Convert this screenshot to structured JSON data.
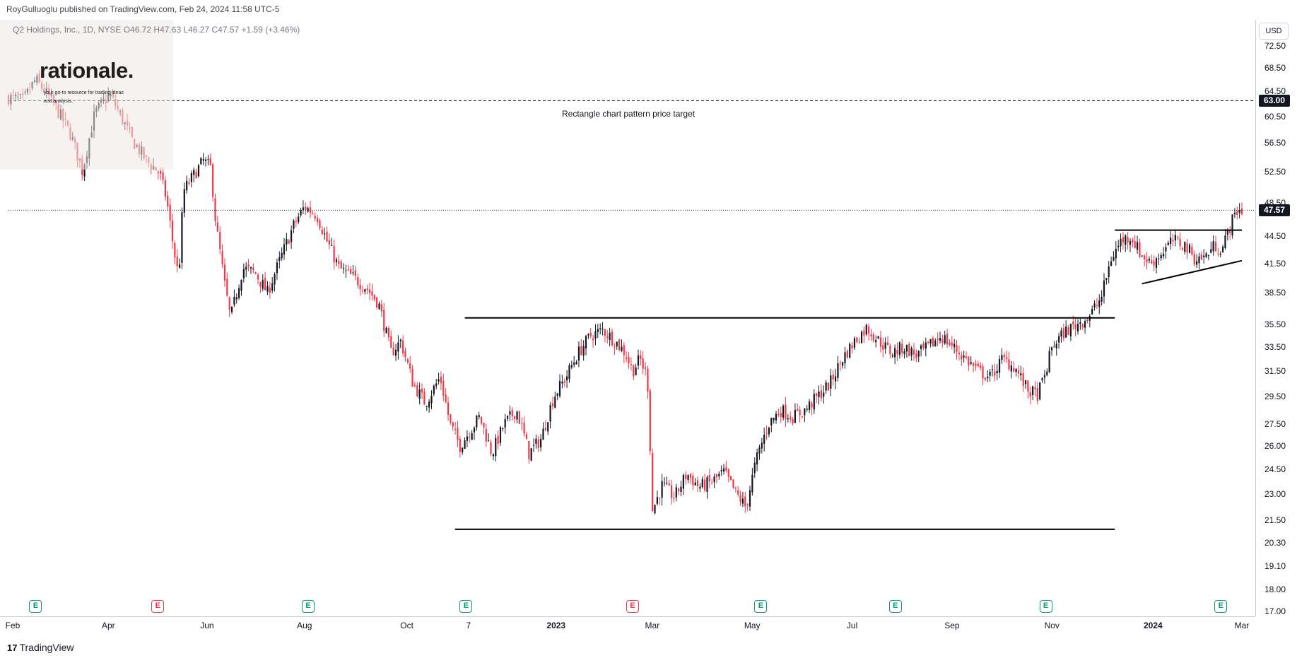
{
  "header": {
    "published": "RoyGulluoglu published on TradingView.com, Feb 24, 2024 11:58 UTC-5",
    "symbol_line": "Q2 Holdings, Inc., 1D, NYSE  O46.72  H47.63  L46.27  C47.57  +1.59 (+3.46%)"
  },
  "watermark": {
    "title": "rationale.",
    "subtitle": "your go-to resource for trading ideas and analysis."
  },
  "currency_button": "USD",
  "footer": {
    "logo_mark": "17",
    "logo_text": "TradingView"
  },
  "chart_data": {
    "type": "candlestick",
    "title": "",
    "ylabel": "",
    "xlabel": "",
    "ylim": [
      16.8,
      77.5
    ],
    "y_scale": "log",
    "y_ticks": [
      "72.50",
      "68.50",
      "64.50",
      "60.50",
      "56.50",
      "52.50",
      "48.50",
      "44.50",
      "41.50",
      "38.50",
      "35.50",
      "33.50",
      "31.50",
      "29.50",
      "27.50",
      "26.00",
      "24.50",
      "23.00",
      "21.50",
      "20.30",
      "19.10",
      "18.00",
      "17.00"
    ],
    "x_ticks": [
      {
        "label": "Feb",
        "pos": 0.0,
        "bold": false
      },
      {
        "label": "Apr",
        "pos": 0.081,
        "bold": false
      },
      {
        "label": "Jun",
        "pos": 0.161,
        "bold": false
      },
      {
        "label": "Aug",
        "pos": 0.24,
        "bold": false
      },
      {
        "label": "Oct",
        "pos": 0.323,
        "bold": false
      },
      {
        "label": "7",
        "pos": 0.373,
        "bold": false
      },
      {
        "label": "2023",
        "pos": 0.444,
        "bold": true
      },
      {
        "label": "Mar",
        "pos": 0.522,
        "bold": false
      },
      {
        "label": "May",
        "pos": 0.603,
        "bold": false
      },
      {
        "label": "Jul",
        "pos": 0.684,
        "bold": false
      },
      {
        "label": "Sep",
        "pos": 0.765,
        "bold": false
      },
      {
        "label": "Nov",
        "pos": 0.846,
        "bold": false
      },
      {
        "label": "2024",
        "pos": 0.928,
        "bold": true
      },
      {
        "label": "Mar",
        "pos": 1.0,
        "bold": false
      }
    ],
    "current_price": {
      "value": 47.57,
      "label": "47.57"
    },
    "target": {
      "value": 63.0,
      "label": "63.00",
      "annotation": "Rectangle chart pattern price target"
    },
    "trendlines": [
      {
        "name": "rectangle-top",
        "x1": 0.37,
        "y1": 36.1,
        "x2": 0.897,
        "y2": 36.1
      },
      {
        "name": "rectangle-bottom",
        "x1": 0.362,
        "y1": 21.0,
        "x2": 0.897,
        "y2": 21.0
      },
      {
        "name": "triangle-resistance",
        "x1": 0.897,
        "y1": 45.2,
        "x2": 1.0,
        "y2": 45.2
      },
      {
        "name": "triangle-support",
        "x1": 0.919,
        "y1": 39.4,
        "x2": 1.0,
        "y2": 41.8
      }
    ],
    "earnings_markers": [
      {
        "pos": 0.022,
        "result": "beat",
        "label": "E"
      },
      {
        "pos": 0.121,
        "result": "miss",
        "label": "E"
      },
      {
        "pos": 0.243,
        "result": "beat",
        "label": "E"
      },
      {
        "pos": 0.371,
        "result": "beat",
        "label": "E"
      },
      {
        "pos": 0.506,
        "result": "miss",
        "label": "E"
      },
      {
        "pos": 0.61,
        "result": "beat",
        "label": "E"
      },
      {
        "pos": 0.719,
        "result": "beat",
        "label": "E"
      },
      {
        "pos": 0.841,
        "result": "beat",
        "label": "E"
      },
      {
        "pos": 0.983,
        "result": "beat",
        "label": "E"
      }
    ],
    "colors": {
      "up": "#131722",
      "down": "#f23645",
      "line": "#000000",
      "grid": "none",
      "earn_beat": "#089981",
      "earn_miss": "#f23645"
    },
    "series": [
      {
        "name": "",
        "anchors": [
          [
            0.0,
            63.5
          ],
          [
            0.012,
            63.0
          ],
          [
            0.022,
            66.5
          ],
          [
            0.035,
            63.0
          ],
          [
            0.05,
            58.0
          ],
          [
            0.06,
            52.5
          ],
          [
            0.07,
            61.0
          ],
          [
            0.082,
            64.0
          ],
          [
            0.09,
            61.0
          ],
          [
            0.1,
            57.0
          ],
          [
            0.112,
            54.0
          ],
          [
            0.122,
            52.5
          ],
          [
            0.128,
            49.0
          ],
          [
            0.134,
            43.0
          ],
          [
            0.138,
            40.0
          ],
          [
            0.142,
            50.0
          ],
          [
            0.15,
            52.0
          ],
          [
            0.158,
            54.0
          ],
          [
            0.164,
            53.0
          ],
          [
            0.168,
            46.0
          ],
          [
            0.175,
            39.5
          ],
          [
            0.18,
            36.0
          ],
          [
            0.19,
            41.0
          ],
          [
            0.2,
            40.5
          ],
          [
            0.21,
            38.5
          ],
          [
            0.222,
            42.5
          ],
          [
            0.232,
            46.0
          ],
          [
            0.24,
            48.0
          ],
          [
            0.25,
            47.0
          ],
          [
            0.258,
            44.0
          ],
          [
            0.268,
            41.0
          ],
          [
            0.28,
            40.0
          ],
          [
            0.29,
            39.0
          ],
          [
            0.3,
            37.5
          ],
          [
            0.31,
            33.0
          ],
          [
            0.318,
            34.0
          ],
          [
            0.328,
            30.5
          ],
          [
            0.338,
            29.0
          ],
          [
            0.35,
            31.0
          ],
          [
            0.358,
            27.5
          ],
          [
            0.366,
            26.0
          ],
          [
            0.374,
            27.0
          ],
          [
            0.382,
            28.0
          ],
          [
            0.392,
            25.5
          ],
          [
            0.402,
            27.5
          ],
          [
            0.412,
            28.5
          ],
          [
            0.422,
            25.5
          ],
          [
            0.432,
            26.5
          ],
          [
            0.442,
            29.5
          ],
          [
            0.452,
            31.0
          ],
          [
            0.462,
            33.0
          ],
          [
            0.472,
            34.5
          ],
          [
            0.482,
            35.0
          ],
          [
            0.492,
            34.0
          ],
          [
            0.5,
            33.0
          ],
          [
            0.506,
            31.5
          ],
          [
            0.512,
            32.5
          ],
          [
            0.518,
            31.0
          ],
          [
            0.522,
            22.0
          ],
          [
            0.53,
            23.5
          ],
          [
            0.54,
            22.8
          ],
          [
            0.55,
            24.2
          ],
          [
            0.56,
            23.4
          ],
          [
            0.57,
            23.7
          ],
          [
            0.58,
            24.3
          ],
          [
            0.59,
            23.0
          ],
          [
            0.598,
            22.2
          ],
          [
            0.606,
            25.0
          ],
          [
            0.616,
            27.5
          ],
          [
            0.626,
            28.5
          ],
          [
            0.636,
            28.0
          ],
          [
            0.646,
            28.5
          ],
          [
            0.656,
            29.5
          ],
          [
            0.666,
            30.5
          ],
          [
            0.676,
            32.5
          ],
          [
            0.686,
            34.0
          ],
          [
            0.696,
            35.2
          ],
          [
            0.706,
            34.0
          ],
          [
            0.716,
            33.0
          ],
          [
            0.726,
            33.5
          ],
          [
            0.736,
            32.8
          ],
          [
            0.746,
            33.5
          ],
          [
            0.756,
            34.5
          ],
          [
            0.766,
            33.5
          ],
          [
            0.776,
            32.5
          ],
          [
            0.786,
            31.5
          ],
          [
            0.796,
            31.0
          ],
          [
            0.806,
            32.5
          ],
          [
            0.816,
            31.8
          ],
          [
            0.826,
            30.0
          ],
          [
            0.834,
            29.6
          ],
          [
            0.84,
            31.0
          ],
          [
            0.846,
            33.5
          ],
          [
            0.856,
            34.8
          ],
          [
            0.866,
            35.5
          ],
          [
            0.876,
            36.2
          ],
          [
            0.886,
            38.0
          ],
          [
            0.894,
            42.0
          ],
          [
            0.902,
            44.0
          ],
          [
            0.91,
            44.5
          ],
          [
            0.918,
            42.5
          ],
          [
            0.926,
            41.5
          ],
          [
            0.934,
            42.5
          ],
          [
            0.944,
            44.0
          ],
          [
            0.954,
            43.5
          ],
          [
            0.962,
            42.0
          ],
          [
            0.97,
            42.2
          ],
          [
            0.978,
            43.5
          ],
          [
            0.984,
            43.0
          ],
          [
            0.99,
            45.5
          ],
          [
            0.996,
            47.57
          ]
        ]
      }
    ]
  }
}
